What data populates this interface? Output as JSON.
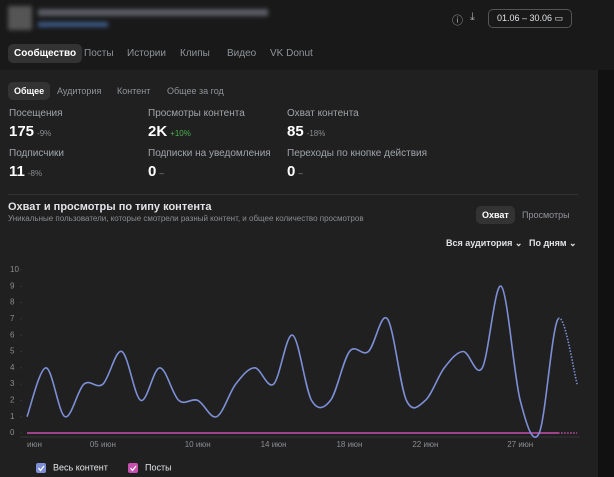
{
  "header": {
    "date_range": "01.06 – 30.06"
  },
  "tabs": [
    "Сообщество",
    "Посты",
    "Истории",
    "Клипы",
    "Видео",
    "VK Donut"
  ],
  "subtabs": [
    "Общее",
    "Аудитория",
    "Контент",
    "Общее за год"
  ],
  "metrics": [
    {
      "label": "Посещения",
      "value": 175,
      "change": "-9%"
    },
    {
      "label": "Просмотры контента",
      "value": "2K",
      "change": "+10%"
    },
    {
      "label": "Охват контента",
      "value": 85,
      "change": "-18%"
    },
    {
      "label": "Подписчики",
      "value": 11,
      "change": "-8%"
    },
    {
      "label": "Подписки на уведомления",
      "value": 0,
      "change": "–"
    },
    {
      "label": "Переходы по кнопке действия",
      "value": 0,
      "change": "–"
    }
  ],
  "chart_data": {
    "type": "line",
    "title": "Охват и просмотры по типу контента",
    "subtitle": "Уникальные пользователи, которые смотрели разный контент, и общее количество просмотров",
    "toggles": [
      "Охват",
      "Просмотры"
    ],
    "filters": [
      "Вся аудитория",
      "По дням"
    ],
    "categories": [
      "июн",
      null,
      null,
      null,
      "05 июн",
      null,
      null,
      null,
      null,
      "10 июн",
      null,
      null,
      null,
      "14 июн",
      null,
      null,
      null,
      "18 июн",
      null,
      null,
      null,
      "22 июн",
      null,
      null,
      null,
      null,
      "27 июн",
      null,
      null,
      null
    ],
    "series": [
      {
        "name": "Весь контент",
        "color": "#7d8fd6",
        "values": [
          1,
          4,
          1,
          3,
          3,
          5,
          2,
          4,
          2,
          2,
          1,
          3,
          4,
          3,
          6,
          2,
          2,
          5,
          5,
          7,
          2,
          2,
          4,
          5,
          4,
          9,
          2,
          0,
          7,
          3
        ]
      },
      {
        "name": "Посты",
        "color": "#c84fae",
        "values": [
          0,
          0,
          0,
          0,
          0,
          0,
          0,
          0,
          0,
          0,
          0,
          0,
          0,
          0,
          0,
          0,
          0,
          0,
          0,
          0,
          0,
          0,
          0,
          0,
          0,
          0,
          0,
          0,
          0,
          0
        ]
      }
    ],
    "ylim": [
      0,
      10
    ],
    "yticks": [
      0,
      1,
      2,
      3,
      4,
      5,
      6,
      7,
      8,
      9,
      10
    ]
  }
}
